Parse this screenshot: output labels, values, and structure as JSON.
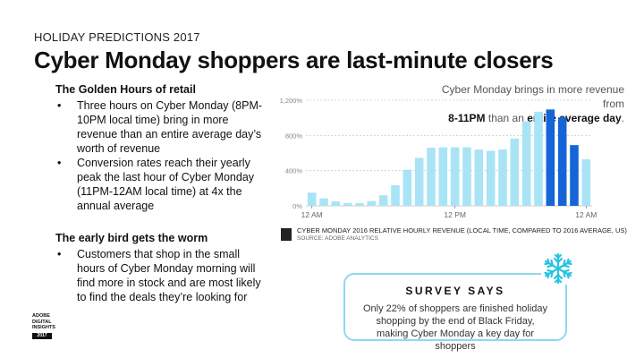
{
  "header": {
    "eyebrow": "HOLIDAY PREDICTIONS 2017",
    "title": "Cyber Monday shoppers are last-minute closers"
  },
  "left": {
    "section1": {
      "heading": "The Golden Hours of retail",
      "bullets": [
        "Three hours on Cyber Monday (8PM-10PM local time) bring in more revenue than an entire average day’s worth of revenue",
        "Conversion rates reach their yearly peak the last hour of Cyber Monday (11PM-12AM local time) at 4x the annual average"
      ]
    },
    "section2": {
      "heading": "The early bird gets the worm",
      "bullets": [
        "Customers that shop in the small hours of Cyber Monday morning will find more in stock and are most likely to find the deals they’re looking for"
      ]
    }
  },
  "badge": {
    "lines": [
      "ADOBE",
      "DIGITAL",
      "INSIGHTS"
    ],
    "year": "2017"
  },
  "callout": {
    "line1": "Cyber Monday brings in more revenue from",
    "bold1": "8-11PM",
    "mid": " than an ",
    "bold2": "entire average day",
    "end": "."
  },
  "chart_data": {
    "type": "bar",
    "caption": "CYBER MONDAY 2016 RELATIVE HOURLY REVENUE (LOCAL TIME, COMPARED TO 2016 AVERAGE, US)",
    "source": "SOURCE: ADOBE ANALYTICS",
    "y_ticks": [
      "0%",
      "400%",
      "800%",
      "1,200%"
    ],
    "y_tick_values": [
      0,
      400,
      800,
      1200
    ],
    "x_tick_labels": [
      "12 AM",
      "12 PM",
      "12 AM"
    ],
    "x_tick_hours": [
      0,
      12,
      23
    ],
    "ylim": [
      0,
      1200
    ],
    "hours": [
      0,
      1,
      2,
      3,
      4,
      5,
      6,
      7,
      8,
      9,
      10,
      11,
      12,
      13,
      14,
      15,
      16,
      17,
      18,
      19,
      20,
      21,
      22,
      23
    ],
    "values": [
      150,
      85,
      50,
      30,
      30,
      55,
      120,
      235,
      410,
      545,
      660,
      665,
      665,
      665,
      640,
      625,
      640,
      765,
      960,
      1070,
      1095,
      1005,
      690,
      530
    ],
    "highlight_hours": [
      20,
      21,
      22
    ],
    "colors": {
      "normal": "#a8e4f6",
      "highlight": "#1565d8"
    },
    "grid": true
  },
  "survey": {
    "heading": "SURVEY SAYS",
    "text": "Only 22% of shoppers are finished holiday shopping by the end of Black Friday, making Cyber Monday a key day for shoppers"
  },
  "icons": {
    "snowflake": "snowflake-icon",
    "logo": "adobe-logo-icon"
  },
  "colors": {
    "accent": "#27c3e3",
    "border": "#8fd8ec"
  }
}
